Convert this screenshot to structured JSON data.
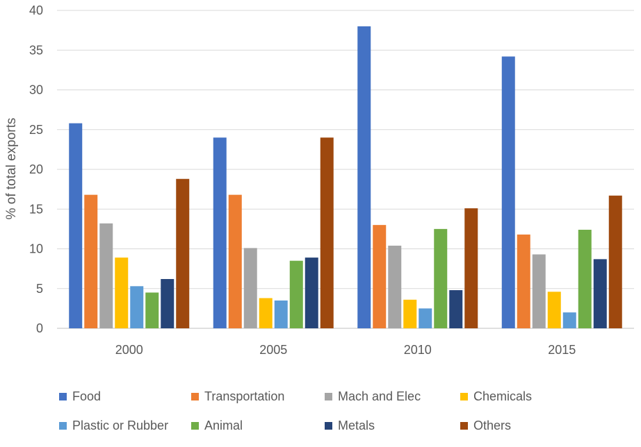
{
  "chart_data": {
    "type": "bar",
    "categories": [
      "2000",
      "2005",
      "2010",
      "2015"
    ],
    "ylabel": "% of total exports",
    "ylim": [
      0,
      40
    ],
    "yticks": [
      0,
      5,
      10,
      15,
      20,
      25,
      30,
      35,
      40
    ],
    "grid": true,
    "legend_position": "bottom",
    "series": [
      {
        "name": "Food",
        "color": "#4472C4",
        "values": [
          25.8,
          24,
          38,
          34.2
        ]
      },
      {
        "name": "Transportation",
        "color": "#ED7D31",
        "values": [
          16.8,
          16.8,
          13,
          11.8
        ]
      },
      {
        "name": "Mach and Elec",
        "color": "#A5A5A5",
        "values": [
          13.2,
          10.1,
          10.4,
          9.3
        ]
      },
      {
        "name": "Chemicals",
        "color": "#FFC000",
        "values": [
          8.9,
          3.8,
          3.6,
          4.6
        ]
      },
      {
        "name": "Plastic or Rubber",
        "color": "#5B9BD5",
        "values": [
          5.3,
          3.5,
          2.5,
          2.0
        ]
      },
      {
        "name": "Animal",
        "color": "#70AD47",
        "values": [
          4.5,
          8.5,
          12.5,
          12.4
        ]
      },
      {
        "name": "Metals",
        "color": "#264478",
        "values": [
          6.2,
          8.9,
          4.8,
          8.7
        ]
      },
      {
        "name": "Others",
        "color": "#9E480E",
        "values": [
          18.8,
          24,
          15.1,
          16.7
        ]
      }
    ]
  }
}
